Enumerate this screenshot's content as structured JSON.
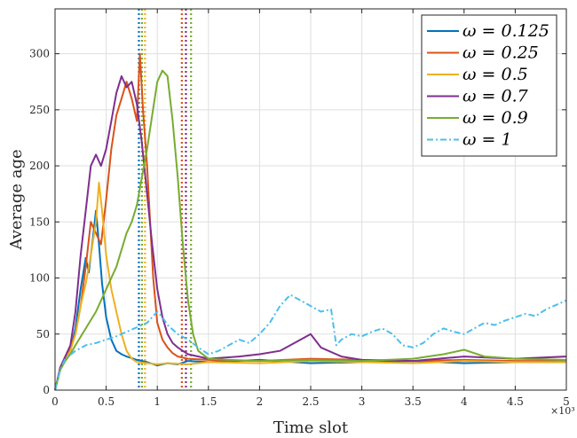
{
  "chart_data": {
    "type": "line",
    "xlabel": "Time slot",
    "ylabel": "Average age",
    "x_exponent_label": "×10³",
    "xlim": [
      0,
      5
    ],
    "ylim": [
      0,
      340
    ],
    "xticks": [
      0,
      0.5,
      1,
      1.5,
      2,
      2.5,
      3,
      3.5,
      4,
      4.5,
      5
    ],
    "xtick_labels": [
      "0",
      "0.5",
      "1",
      "1.5",
      "2",
      "2.5",
      "3",
      "3.5",
      "4",
      "4.5",
      "5"
    ],
    "yticks": [
      0,
      50,
      100,
      150,
      200,
      250,
      300
    ],
    "ytick_labels": [
      "0",
      "50",
      "100",
      "150",
      "200",
      "250",
      "300"
    ],
    "grid": true,
    "legend_position": "top-right",
    "series": [
      {
        "name": "ω = 0.125",
        "color": "#0072BD",
        "dash": "solid",
        "points": [
          [
            0,
            0
          ],
          [
            0.05,
            18
          ],
          [
            0.1,
            28
          ],
          [
            0.15,
            35
          ],
          [
            0.2,
            55
          ],
          [
            0.25,
            90
          ],
          [
            0.3,
            118
          ],
          [
            0.33,
            105
          ],
          [
            0.37,
            135
          ],
          [
            0.4,
            160
          ],
          [
            0.43,
            130
          ],
          [
            0.46,
            95
          ],
          [
            0.5,
            65
          ],
          [
            0.55,
            45
          ],
          [
            0.6,
            35
          ],
          [
            0.65,
            32
          ],
          [
            0.7,
            30
          ],
          [
            0.8,
            27
          ],
          [
            0.9,
            25
          ],
          [
            1.0,
            22
          ],
          [
            1.1,
            24
          ],
          [
            1.2,
            23
          ],
          [
            1.3,
            26
          ],
          [
            1.5,
            25
          ],
          [
            2.0,
            27
          ],
          [
            2.5,
            24
          ],
          [
            3.0,
            25
          ],
          [
            3.5,
            26
          ],
          [
            4.0,
            24
          ],
          [
            4.5,
            25
          ],
          [
            5.0,
            25
          ]
        ]
      },
      {
        "name": "ω = 0.25",
        "color": "#D95319",
        "dash": "solid",
        "points": [
          [
            0,
            0
          ],
          [
            0.05,
            20
          ],
          [
            0.1,
            30
          ],
          [
            0.15,
            38
          ],
          [
            0.2,
            50
          ],
          [
            0.25,
            75
          ],
          [
            0.3,
            110
          ],
          [
            0.35,
            150
          ],
          [
            0.4,
            140
          ],
          [
            0.45,
            130
          ],
          [
            0.5,
            170
          ],
          [
            0.55,
            215
          ],
          [
            0.6,
            245
          ],
          [
            0.65,
            260
          ],
          [
            0.7,
            275
          ],
          [
            0.75,
            260
          ],
          [
            0.8,
            240
          ],
          [
            0.83,
            300
          ],
          [
            0.86,
            250
          ],
          [
            0.9,
            200
          ],
          [
            0.93,
            150
          ],
          [
            0.96,
            100
          ],
          [
            1.0,
            60
          ],
          [
            1.05,
            45
          ],
          [
            1.1,
            38
          ],
          [
            1.15,
            33
          ],
          [
            1.2,
            30
          ],
          [
            1.3,
            28
          ],
          [
            1.5,
            27
          ],
          [
            2.0,
            26
          ],
          [
            2.5,
            28
          ],
          [
            3.0,
            27
          ],
          [
            3.5,
            26
          ],
          [
            4.0,
            27
          ],
          [
            4.5,
            26
          ],
          [
            5.0,
            26
          ]
        ]
      },
      {
        "name": "ω = 0.5",
        "color": "#EDB120",
        "dash": "solid",
        "points": [
          [
            0,
            0
          ],
          [
            0.05,
            18
          ],
          [
            0.1,
            28
          ],
          [
            0.15,
            35
          ],
          [
            0.2,
            50
          ],
          [
            0.25,
            75
          ],
          [
            0.3,
            95
          ],
          [
            0.35,
            120
          ],
          [
            0.4,
            150
          ],
          [
            0.43,
            185
          ],
          [
            0.46,
            160
          ],
          [
            0.5,
            120
          ],
          [
            0.55,
            90
          ],
          [
            0.6,
            70
          ],
          [
            0.65,
            50
          ],
          [
            0.7,
            35
          ],
          [
            0.75,
            28
          ],
          [
            0.8,
            25
          ],
          [
            0.9,
            24
          ],
          [
            1.0,
            23
          ],
          [
            1.1,
            24
          ],
          [
            1.3,
            23
          ],
          [
            1.5,
            25
          ],
          [
            2.0,
            24
          ],
          [
            2.5,
            26
          ],
          [
            3.0,
            25
          ],
          [
            3.5,
            24
          ],
          [
            4.0,
            26
          ],
          [
            4.5,
            25
          ],
          [
            5.0,
            25
          ]
        ]
      },
      {
        "name": "ω = 0.7",
        "color": "#7E2F8E",
        "dash": "solid",
        "points": [
          [
            0,
            0
          ],
          [
            0.05,
            20
          ],
          [
            0.1,
            30
          ],
          [
            0.15,
            40
          ],
          [
            0.2,
            70
          ],
          [
            0.25,
            120
          ],
          [
            0.3,
            160
          ],
          [
            0.35,
            200
          ],
          [
            0.4,
            210
          ],
          [
            0.45,
            200
          ],
          [
            0.5,
            215
          ],
          [
            0.55,
            240
          ],
          [
            0.6,
            265
          ],
          [
            0.65,
            280
          ],
          [
            0.7,
            270
          ],
          [
            0.75,
            275
          ],
          [
            0.8,
            255
          ],
          [
            0.85,
            220
          ],
          [
            0.9,
            175
          ],
          [
            0.95,
            130
          ],
          [
            1.0,
            90
          ],
          [
            1.05,
            65
          ],
          [
            1.1,
            50
          ],
          [
            1.15,
            42
          ],
          [
            1.2,
            38
          ],
          [
            1.3,
            32
          ],
          [
            1.5,
            28
          ],
          [
            1.8,
            30
          ],
          [
            2.0,
            32
          ],
          [
            2.2,
            35
          ],
          [
            2.4,
            45
          ],
          [
            2.5,
            50
          ],
          [
            2.6,
            38
          ],
          [
            2.8,
            30
          ],
          [
            3.0,
            27
          ],
          [
            3.5,
            26
          ],
          [
            4.0,
            30
          ],
          [
            4.5,
            28
          ],
          [
            5.0,
            30
          ]
        ]
      },
      {
        "name": "ω = 0.9",
        "color": "#77AC30",
        "dash": "solid",
        "points": [
          [
            0,
            0
          ],
          [
            0.05,
            18
          ],
          [
            0.1,
            26
          ],
          [
            0.15,
            32
          ],
          [
            0.2,
            40
          ],
          [
            0.3,
            55
          ],
          [
            0.4,
            70
          ],
          [
            0.5,
            90
          ],
          [
            0.6,
            110
          ],
          [
            0.7,
            140
          ],
          [
            0.75,
            150
          ],
          [
            0.8,
            165
          ],
          [
            0.85,
            190
          ],
          [
            0.9,
            215
          ],
          [
            0.95,
            245
          ],
          [
            1.0,
            275
          ],
          [
            1.05,
            285
          ],
          [
            1.1,
            280
          ],
          [
            1.15,
            240
          ],
          [
            1.2,
            190
          ],
          [
            1.25,
            130
          ],
          [
            1.3,
            80
          ],
          [
            1.35,
            50
          ],
          [
            1.4,
            35
          ],
          [
            1.5,
            28
          ],
          [
            1.7,
            27
          ],
          [
            2.0,
            26
          ],
          [
            2.5,
            27
          ],
          [
            3.0,
            26
          ],
          [
            3.5,
            28
          ],
          [
            3.8,
            32
          ],
          [
            4.0,
            36
          ],
          [
            4.2,
            30
          ],
          [
            4.5,
            28
          ],
          [
            5.0,
            27
          ]
        ]
      },
      {
        "name": "ω = 1",
        "color": "#4DBEEE",
        "dash": "dashdot",
        "points": [
          [
            0,
            0
          ],
          [
            0.05,
            18
          ],
          [
            0.1,
            28
          ],
          [
            0.2,
            35
          ],
          [
            0.3,
            40
          ],
          [
            0.4,
            42
          ],
          [
            0.5,
            45
          ],
          [
            0.6,
            48
          ],
          [
            0.7,
            52
          ],
          [
            0.8,
            56
          ],
          [
            0.9,
            60
          ],
          [
            1.0,
            70
          ],
          [
            1.05,
            65
          ],
          [
            1.1,
            58
          ],
          [
            1.2,
            50
          ],
          [
            1.3,
            45
          ],
          [
            1.4,
            38
          ],
          [
            1.5,
            32
          ],
          [
            1.6,
            35
          ],
          [
            1.7,
            40
          ],
          [
            1.8,
            45
          ],
          [
            1.9,
            42
          ],
          [
            2.0,
            50
          ],
          [
            2.1,
            60
          ],
          [
            2.2,
            75
          ],
          [
            2.3,
            85
          ],
          [
            2.4,
            80
          ],
          [
            2.5,
            75
          ],
          [
            2.6,
            70
          ],
          [
            2.7,
            72
          ],
          [
            2.75,
            40
          ],
          [
            2.8,
            45
          ],
          [
            2.9,
            50
          ],
          [
            3.0,
            48
          ],
          [
            3.1,
            52
          ],
          [
            3.2,
            55
          ],
          [
            3.3,
            50
          ],
          [
            3.4,
            40
          ],
          [
            3.5,
            38
          ],
          [
            3.6,
            42
          ],
          [
            3.7,
            50
          ],
          [
            3.8,
            55
          ],
          [
            3.9,
            52
          ],
          [
            4.0,
            50
          ],
          [
            4.1,
            55
          ],
          [
            4.2,
            60
          ],
          [
            4.3,
            58
          ],
          [
            4.4,
            62
          ],
          [
            4.5,
            65
          ],
          [
            4.6,
            68
          ],
          [
            4.7,
            66
          ],
          [
            4.8,
            72
          ],
          [
            4.9,
            76
          ],
          [
            5.0,
            80
          ]
        ]
      }
    ],
    "vertical_lines": [
      {
        "x": 0.82,
        "color": "#0072BD"
      },
      {
        "x": 0.85,
        "color": "#77AC30"
      },
      {
        "x": 0.88,
        "color": "#EDB120"
      },
      {
        "x": 1.24,
        "color": "#D95319"
      },
      {
        "x": 1.28,
        "color": "#7E2F8E"
      },
      {
        "x": 1.33,
        "color": "#77AC30"
      }
    ]
  }
}
